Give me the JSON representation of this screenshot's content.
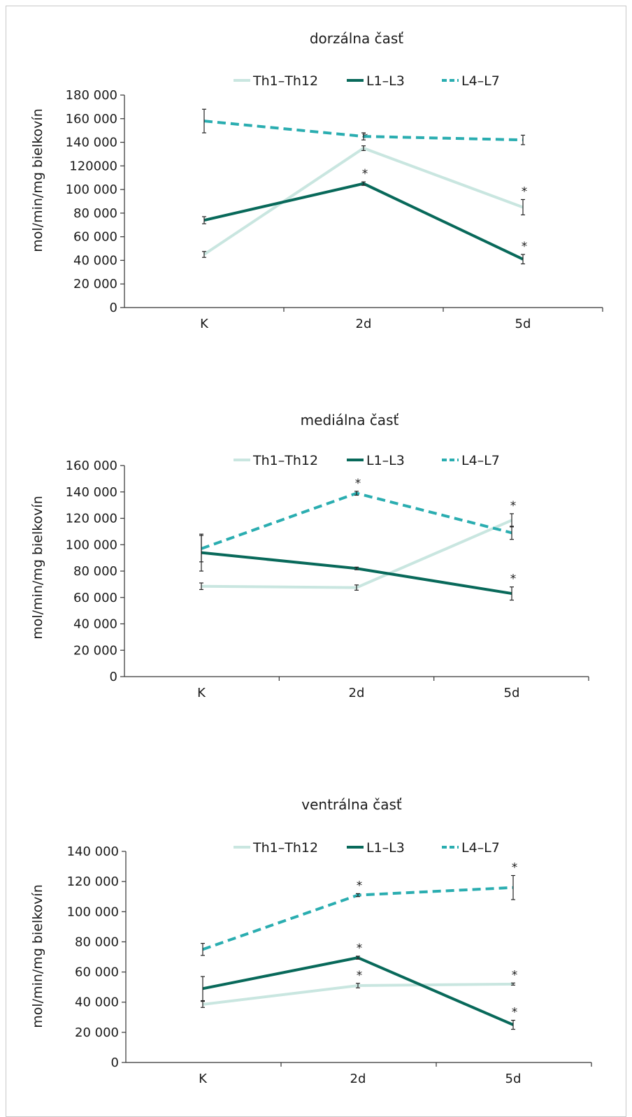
{
  "chart_data": [
    {
      "type": "line",
      "title": "dorzálna časť",
      "ylabel": "mol/min/mg bielkovín",
      "categories": [
        "K",
        "2d",
        "5d"
      ],
      "ylim": [
        0,
        180000
      ],
      "yticks": [
        0,
        20000,
        40000,
        60000,
        80000,
        100000,
        120000,
        140000,
        160000,
        180000
      ],
      "ytick_labels": [
        "0",
        "20 000",
        "40 000",
        "60 000",
        "80 000",
        "100 000",
        "120000",
        "140 000",
        "160 000",
        "180 000"
      ],
      "series": [
        {
          "name": "Th1–Th12",
          "values": [
            45000,
            135000,
            85000
          ],
          "errors": [
            2500,
            2000,
            6500
          ],
          "stars": [
            false,
            true,
            true
          ]
        },
        {
          "name": "L1–L3",
          "values": [
            74000,
            105000,
            41000
          ],
          "errors": [
            3000,
            1500,
            4000
          ],
          "stars": [
            false,
            true,
            true
          ]
        },
        {
          "name": "L4–L7",
          "values": [
            158000,
            145000,
            142000
          ],
          "errors": [
            10000,
            3000,
            4000
          ],
          "stars": [
            false,
            false,
            false
          ]
        }
      ]
    },
    {
      "type": "line",
      "title": "mediálna časť",
      "ylabel": "mol/min/mg bielkovín",
      "categories": [
        "K",
        "2d",
        "5d"
      ],
      "ylim": [
        0,
        160000
      ],
      "yticks": [
        0,
        20000,
        40000,
        60000,
        80000,
        100000,
        120000,
        140000,
        160000
      ],
      "ytick_labels": [
        "0",
        "20 000",
        "40 000",
        "60 000",
        "80 000",
        "100 000",
        "120 000",
        "140 000",
        "160 000"
      ],
      "series": [
        {
          "name": "Th1–Th12",
          "values": [
            68500,
            67500,
            118500
          ],
          "errors": [
            2500,
            2000,
            5000
          ],
          "stars": [
            false,
            false,
            true
          ]
        },
        {
          "name": "L1–L3",
          "values": [
            94000,
            82000,
            63000
          ],
          "errors": [
            14000,
            1000,
            5000
          ],
          "stars": [
            false,
            false,
            true
          ]
        },
        {
          "name": "L4–L7",
          "values": [
            97000,
            139000,
            109000
          ],
          "errors": [
            10000,
            1500,
            5000
          ],
          "stars": [
            false,
            true,
            false
          ]
        }
      ]
    },
    {
      "type": "line",
      "title": "ventrálna časť",
      "ylabel": "mol/min/mg bielkovín",
      "categories": [
        "K",
        "2d",
        "5d"
      ],
      "ylim": [
        0,
        140000
      ],
      "yticks": [
        0,
        20000,
        40000,
        60000,
        80000,
        100000,
        120000,
        140000
      ],
      "ytick_labels": [
        "0",
        "20 000",
        "40 000",
        "60 000",
        "80 000",
        "100 000",
        "120 000",
        "140 000"
      ],
      "series": [
        {
          "name": "Th1–Th12",
          "values": [
            38500,
            51000,
            52000
          ],
          "errors": [
            2000,
            1500,
            700
          ],
          "stars": [
            false,
            true,
            true
          ]
        },
        {
          "name": "L1–L3",
          "values": [
            49000,
            69500,
            25000
          ],
          "errors": [
            8000,
            1000,
            3000
          ],
          "stars": [
            false,
            true,
            true
          ]
        },
        {
          "name": "L4–L7",
          "values": [
            75000,
            111000,
            116000
          ],
          "errors": [
            4000,
            1000,
            8000
          ],
          "stars": [
            false,
            true,
            true
          ]
        }
      ]
    }
  ],
  "series_styles": [
    {
      "color": "#c9e6e0",
      "dashed": false
    },
    {
      "color": "#08695a",
      "dashed": false
    },
    {
      "color": "#2aadb0",
      "dashed": true
    }
  ],
  "significance_marker": "*"
}
